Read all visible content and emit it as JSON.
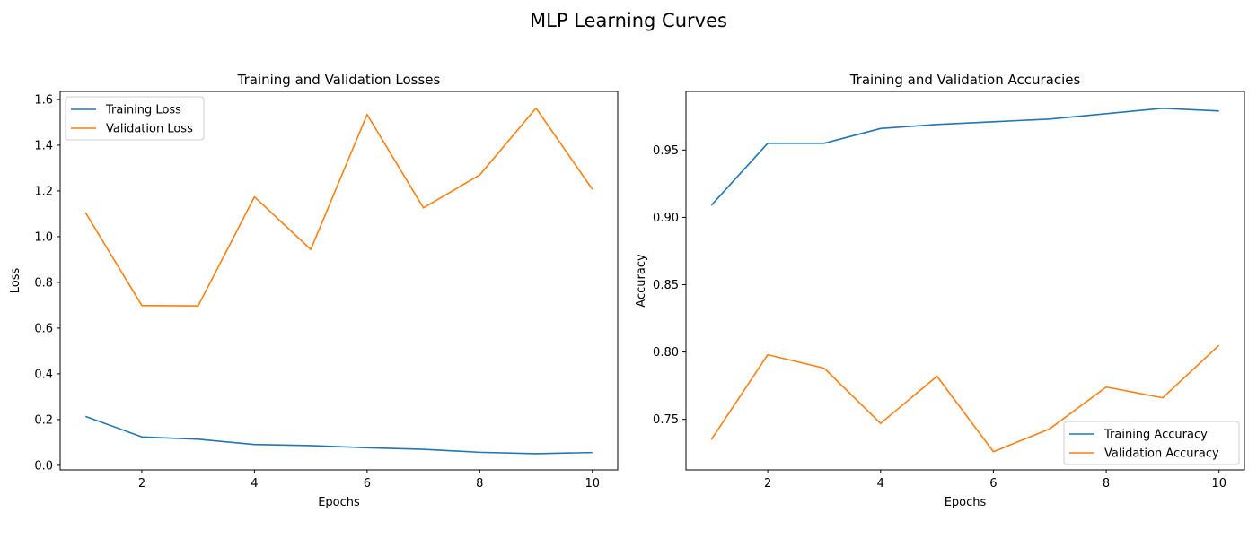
{
  "figure": {
    "suptitle": "MLP Learning Curves"
  },
  "chart_data": [
    {
      "type": "line",
      "title": "Training and Validation Losses",
      "xlabel": "Epochs",
      "ylabel": "Loss",
      "x": [
        1,
        2,
        3,
        4,
        5,
        6,
        7,
        8,
        9,
        10
      ],
      "xlim": [
        0.55,
        10.45
      ],
      "ylim": [
        -0.02,
        1.635
      ],
      "xticks": [
        2,
        4,
        6,
        8,
        10
      ],
      "yticks": [
        0.0,
        0.2,
        0.4,
        0.6,
        0.8,
        1.0,
        1.2,
        1.4,
        1.6
      ],
      "ytick_decimals": 1,
      "grid": false,
      "legend": "upper left",
      "series": [
        {
          "name": "Training Loss",
          "color": "#1f77b4",
          "values": [
            0.214,
            0.124,
            0.114,
            0.091,
            0.086,
            0.077,
            0.07,
            0.057,
            0.051,
            0.056
          ]
        },
        {
          "name": "Validation Loss",
          "color": "#ff7f0e",
          "values": [
            1.105,
            0.699,
            0.697,
            1.174,
            0.944,
            1.534,
            1.126,
            1.27,
            1.562,
            1.207
          ]
        }
      ]
    },
    {
      "type": "line",
      "title": "Training and Validation Accuracies",
      "xlabel": "Epochs",
      "ylabel": "Accuracy",
      "x": [
        1,
        2,
        3,
        4,
        5,
        6,
        7,
        8,
        9,
        10
      ],
      "xlim": [
        0.55,
        10.45
      ],
      "ylim": [
        0.7125,
        0.9935
      ],
      "xticks": [
        2,
        4,
        6,
        8,
        10
      ],
      "yticks": [
        0.75,
        0.8,
        0.85,
        0.9,
        0.95
      ],
      "ytick_decimals": 2,
      "grid": false,
      "legend": "lower right",
      "series": [
        {
          "name": "Training Accuracy",
          "color": "#1f77b4",
          "values": [
            0.909,
            0.955,
            0.955,
            0.966,
            0.969,
            0.971,
            0.973,
            0.977,
            0.981,
            0.979
          ]
        },
        {
          "name": "Validation Accuracy",
          "color": "#ff7f0e",
          "values": [
            0.735,
            0.798,
            0.788,
            0.747,
            0.782,
            0.726,
            0.743,
            0.774,
            0.766,
            0.805
          ]
        }
      ]
    }
  ]
}
